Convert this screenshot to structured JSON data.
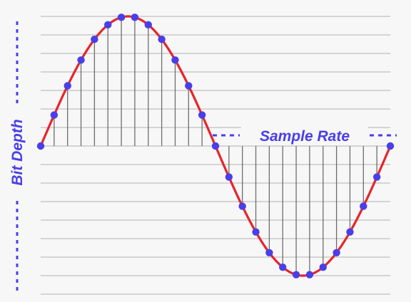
{
  "diagram": {
    "labels": {
      "bit_depth": "Bit Depth",
      "sample_rate": "Sample Rate"
    },
    "colors": {
      "background": "#f7f7f7",
      "grid_line": "#c8c8c8",
      "stem_line": "#6e6e6e",
      "wave": "#e8232a",
      "sample_point": "#4a3ee8",
      "label": "#4a3ee8"
    },
    "wave": {
      "periods": 1,
      "sample_count": 26
    }
  }
}
